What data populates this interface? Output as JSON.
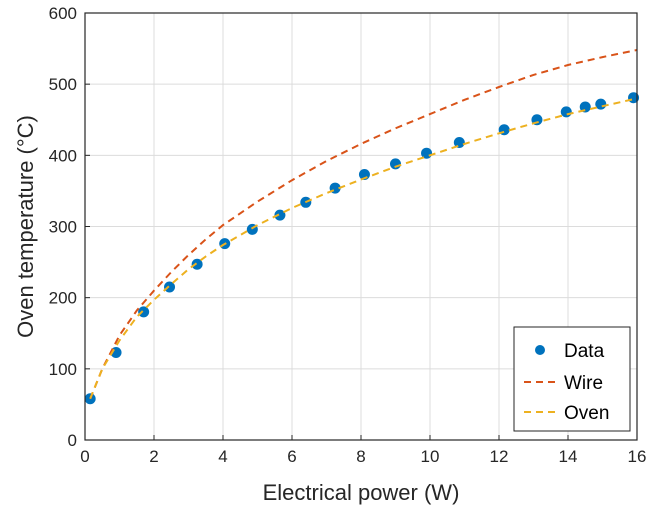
{
  "chart_data": {
    "type": "scatter",
    "xlabel": "Electrical power (W)",
    "ylabel": "Oven temperature (°C)",
    "xlim": [
      0,
      16
    ],
    "ylim": [
      0,
      600
    ],
    "x_ticks": [
      0,
      2,
      4,
      6,
      8,
      10,
      12,
      14,
      16
    ],
    "y_ticks": [
      0,
      100,
      200,
      300,
      400,
      500,
      600
    ],
    "grid": true,
    "legend_position": "bottom-right",
    "series": [
      {
        "name": "Data",
        "style": "markers",
        "color": "#0072BD",
        "x": [
          0.15,
          0.9,
          1.7,
          2.45,
          3.25,
          4.05,
          4.85,
          5.65,
          6.4,
          7.25,
          8.1,
          9.0,
          9.9,
          10.85,
          12.15,
          13.1,
          13.95,
          14.5,
          14.95,
          15.9
        ],
        "y": [
          58,
          123,
          180,
          215,
          247,
          276,
          296,
          316,
          334,
          354,
          373,
          388,
          403,
          418,
          436,
          450,
          461,
          468,
          472,
          481
        ]
      },
      {
        "name": "Wire",
        "style": "dashed",
        "color": "#D95319",
        "x": [
          0.15,
          0.5,
          1.0,
          1.5,
          2.0,
          2.5,
          3.0,
          3.5,
          4.0,
          5.0,
          6.0,
          7.0,
          8.0,
          9.0,
          10.0,
          11.0,
          12.0,
          13.0,
          14.0,
          15.0,
          16.0
        ],
        "y": [
          58,
          100,
          147,
          182,
          210,
          236,
          260,
          282,
          302,
          335,
          365,
          392,
          416,
          438,
          458,
          478,
          496,
          513,
          527,
          538,
          548
        ]
      },
      {
        "name": "Oven",
        "style": "dashed",
        "color": "#EDB120",
        "x": [
          0.15,
          0.5,
          1.0,
          1.5,
          2.0,
          2.5,
          3.0,
          3.5,
          4.0,
          5.0,
          6.0,
          7.0,
          8.0,
          9.0,
          10.0,
          11.0,
          12.0,
          13.0,
          14.0,
          15.0,
          16.0
        ],
        "y": [
          58,
          100,
          140,
          173,
          197,
          219,
          240,
          258,
          274,
          302,
          326,
          347,
          366,
          384,
          400,
          416,
          431,
          445,
          458,
          469,
          480
        ]
      }
    ]
  }
}
